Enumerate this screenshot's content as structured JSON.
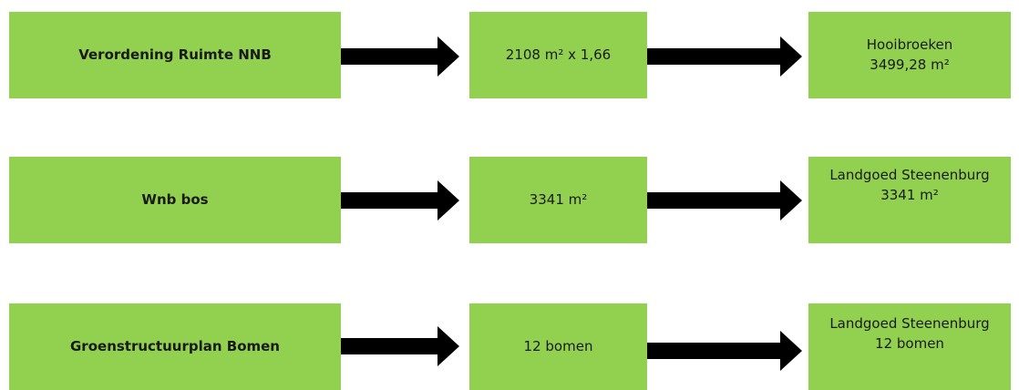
{
  "rows": [
    {
      "source": "Verordening Ruimte NNB",
      "calc": "2108 m² x 1,66",
      "result_line1": "Hooibroeken",
      "result_line2": "3499,28 m²"
    },
    {
      "source": "Wnb bos",
      "calc": "3341 m²",
      "result_line1": "Landgoed Steenenburg",
      "result_line2": "3341 m²"
    },
    {
      "source": "Groenstructuurplan Bomen",
      "calc": "12 bomen",
      "result_line1": "Landgoed Steenenburg",
      "result_line2": "12 bomen"
    }
  ],
  "colors": {
    "box_fill": "#92d050",
    "arrow": "#000000",
    "text": "#1a1a1a"
  },
  "icons": {
    "connector": "arrow-right-icon"
  }
}
